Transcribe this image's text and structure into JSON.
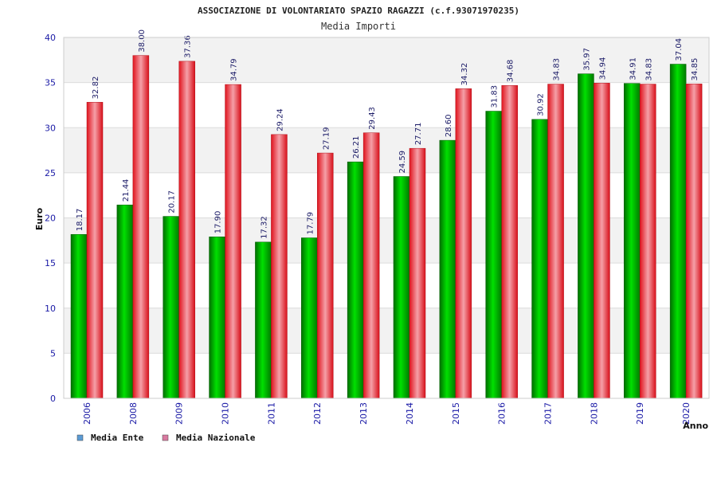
{
  "chart_data": {
    "type": "bar",
    "title": "ASSOCIAZIONE DI VOLONTARIATO SPAZIO RAGAZZI (c.f.93071970235)",
    "subtitle": "Media Importi",
    "xlabel": "Anno",
    "ylabel": "Euro",
    "ylim": [
      0,
      40
    ],
    "yticks": [
      0,
      5,
      10,
      15,
      20,
      25,
      30,
      35,
      40
    ],
    "grid": true,
    "legend_position": "bottom-left",
    "categories": [
      "2006",
      "2008",
      "2009",
      "2010",
      "2011",
      "2012",
      "2013",
      "2014",
      "2015",
      "2016",
      "2017",
      "2018",
      "2019",
      "2020"
    ],
    "series": [
      {
        "name": "Media Ente",
        "values": [
          18.17,
          21.44,
          20.17,
          17.9,
          17.32,
          17.79,
          26.21,
          24.59,
          28.6,
          31.83,
          30.92,
          35.97,
          34.91,
          37.04
        ],
        "labels": [
          "18.17",
          "21.44",
          "20.17",
          "17.90",
          "17.32",
          "17.79",
          "26.21",
          "24.59",
          "28.60",
          "31.83",
          "30.92",
          "35.97",
          "34.91",
          "37.04"
        ],
        "bar_color": "#00b400",
        "legend_color": "#5b9bd5"
      },
      {
        "name": "Media Nazionale",
        "values": [
          32.82,
          38.0,
          37.36,
          34.79,
          29.24,
          27.19,
          29.43,
          27.71,
          34.32,
          34.68,
          34.83,
          34.94,
          34.83,
          34.85
        ],
        "labels": [
          "32.82",
          "38.00",
          "37.36",
          "34.79",
          "29.24",
          "27.19",
          "29.43",
          "27.71",
          "34.32",
          "34.68",
          "34.83",
          "34.94",
          "34.83",
          "34.85"
        ],
        "bar_color": "#e8202a",
        "legend_color": "#d97aa0"
      }
    ]
  }
}
